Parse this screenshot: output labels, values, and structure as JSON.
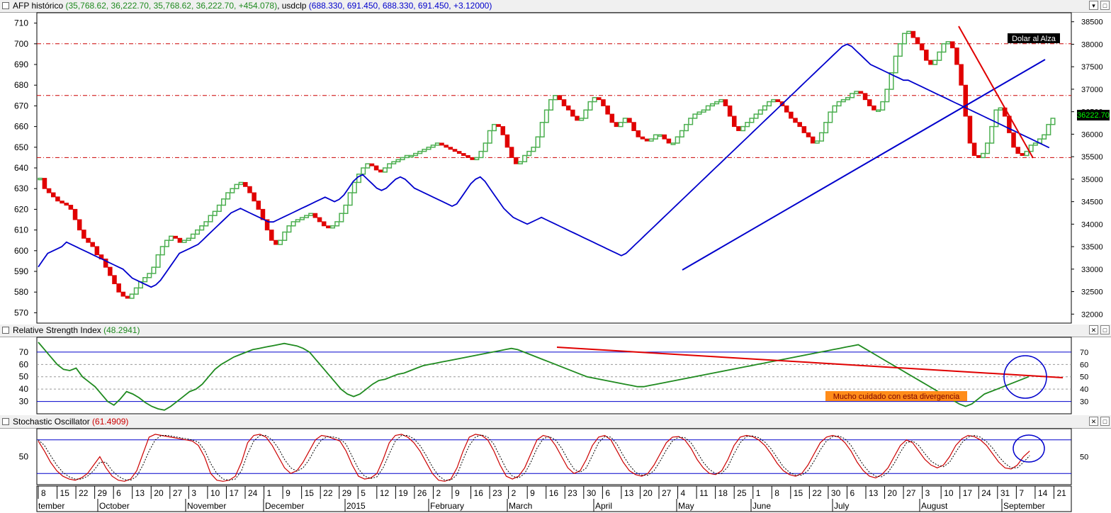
{
  "panels": {
    "price": {
      "prefix": "AFP histórico",
      "afp_values": "(35,768.62, 36,222.70, 35,768.62, 36,222.70, +454.078)",
      "usd_name": "usdclp",
      "usd_values": "(688.330, 691.450, 688.330, 691.450, +3.12000)",
      "annotation": "Dolar al Alza",
      "last_price_label": "36222.70",
      "left_ticks": [
        "710",
        "700",
        "690",
        "680",
        "670",
        "660",
        "650",
        "640",
        "630",
        "620",
        "610",
        "600",
        "590",
        "580",
        "570"
      ],
      "right_ticks": [
        "38500",
        "38000",
        "37500",
        "37000",
        "36500",
        "36000",
        "35500",
        "35000",
        "34500",
        "34000",
        "33500",
        "33000",
        "32500",
        "32000"
      ]
    },
    "rsi": {
      "title": "Relative Strength Index",
      "value": "(48.2941)",
      "annotation": "Mucho cuidado con esta divergencia",
      "ticks": [
        "70",
        "60",
        "50",
        "40",
        "30"
      ]
    },
    "stoch": {
      "title": "Stochastic Oscillator",
      "value": "(61.4909)",
      "ticks": [
        "50"
      ]
    }
  },
  "xaxis": {
    "day_ticks": [
      "8",
      "15",
      "22",
      "29",
      "6",
      "13",
      "20",
      "27",
      "3",
      "10",
      "17",
      "24",
      "1",
      "9",
      "15",
      "22",
      "29",
      "5",
      "12",
      "19",
      "26",
      "2",
      "9",
      "16",
      "23",
      "2",
      "9",
      "16",
      "23",
      "30",
      "6",
      "13",
      "20",
      "27",
      "4",
      "11",
      "18",
      "25",
      "1",
      "8",
      "15",
      "22",
      "30",
      "6",
      "13",
      "20",
      "27",
      "3",
      "10",
      "17",
      "24",
      "31",
      "7",
      "14",
      "21"
    ],
    "month_labels": [
      "tember",
      "October",
      "November",
      "December",
      "2015",
      "February",
      "March",
      "April",
      "May",
      "June",
      "July",
      "August",
      "September"
    ]
  },
  "colors": {
    "up_candle": "#4caf50",
    "down_candle": "#e00000",
    "usd_line": "#0000cc",
    "rsi_line": "#1f8a1f",
    "trend_red": "#e00000",
    "trend_blue": "#0000cc",
    "stoch_k": "#cc0000",
    "stoch_d": "#000000"
  },
  "chart_data": [
    {
      "type": "candlestick+line",
      "series": [
        {
          "name": "AFP histórico",
          "axis": "left",
          "values": [
            635,
            630,
            628,
            626,
            624,
            623,
            622,
            620,
            615,
            610,
            606,
            604,
            602,
            598,
            596,
            592,
            588,
            584,
            580,
            578,
            577,
            579,
            582,
            585,
            587,
            589,
            592,
            598,
            602,
            605,
            607,
            606,
            604,
            605,
            606,
            608,
            610,
            612,
            614,
            617,
            619,
            622,
            625,
            628,
            630,
            632,
            633,
            631,
            628,
            624,
            620,
            615,
            610,
            605,
            603,
            605,
            609,
            612,
            614,
            615,
            616,
            617,
            618,
            616,
            614,
            612,
            611,
            612,
            614,
            618,
            622,
            628,
            633,
            637,
            640,
            642,
            641,
            639,
            638,
            640,
            642,
            643,
            644,
            645,
            646,
            646,
            647,
            648,
            649,
            650,
            651,
            652,
            651,
            650,
            649,
            648,
            647,
            646,
            645,
            644,
            645,
            648,
            652,
            658,
            661,
            660,
            656,
            650,
            645,
            642,
            643,
            646,
            648,
            650,
            655,
            662,
            668,
            673,
            675,
            673,
            670,
            668,
            665,
            663,
            664,
            668,
            672,
            674,
            673,
            670,
            666,
            662,
            660,
            662,
            664,
            662,
            658,
            655,
            654,
            653,
            654,
            656,
            656,
            654,
            652,
            652,
            655,
            658,
            661,
            664,
            666,
            667,
            668,
            670,
            671,
            672,
            673,
            670,
            665,
            660,
            658,
            660,
            662,
            664,
            666,
            668,
            670,
            672,
            673,
            672,
            670,
            667,
            664,
            662,
            660,
            657,
            655,
            652,
            653,
            657,
            662,
            667,
            670,
            672,
            673,
            674,
            676,
            677,
            676,
            673,
            670,
            668,
            668,
            672,
            678,
            686,
            694,
            700,
            705,
            706,
            703,
            700,
            697,
            692,
            690,
            692,
            696,
            700,
            701,
            698,
            690,
            680,
            665,
            652,
            646,
            645,
            647,
            652,
            660,
            668,
            669,
            665,
            657,
            650,
            647,
            646,
            648,
            651,
            652,
            654,
            656,
            661,
            664
          ]
        },
        {
          "name": "usdclp",
          "axis": "right",
          "values": [
            33050,
            33200,
            33350,
            33400,
            33450,
            33500,
            33600,
            33550,
            33500,
            33450,
            33400,
            33350,
            33300,
            33250,
            33200,
            33150,
            33100,
            33050,
            33000,
            32900,
            32800,
            32750,
            32700,
            32650,
            32600,
            32650,
            32750,
            32900,
            33050,
            33200,
            33350,
            33400,
            33450,
            33500,
            33550,
            33650,
            33750,
            33850,
            33950,
            34050,
            34150,
            34250,
            34300,
            34350,
            34300,
            34250,
            34200,
            34150,
            34100,
            34050,
            34050,
            34100,
            34150,
            34200,
            34250,
            34300,
            34350,
            34400,
            34450,
            34500,
            34550,
            34600,
            34550,
            34500,
            34550,
            34650,
            34800,
            34950,
            35050,
            35100,
            35000,
            34900,
            34800,
            34750,
            34800,
            34900,
            35000,
            35050,
            35000,
            34900,
            34800,
            34750,
            34700,
            34650,
            34600,
            34550,
            34500,
            34450,
            34400,
            34450,
            34600,
            34750,
            34900,
            35000,
            35050,
            34950,
            34800,
            34650,
            34500,
            34350,
            34250,
            34150,
            34100,
            34050,
            34000,
            34050,
            34100,
            34150,
            34100,
            34050,
            34000,
            33950,
            33900,
            33850,
            33800,
            33750,
            33700,
            33650,
            33600,
            33550,
            33500,
            33450,
            33400,
            33350,
            33300,
            33350,
            33450,
            33550,
            33650,
            33750,
            33850,
            33950,
            34050,
            34150,
            34250,
            34350,
            34450,
            34550,
            34650,
            34750,
            34850,
            34950,
            35050,
            35150,
            35250,
            35350,
            35450,
            35550,
            35650,
            35750,
            35850,
            35950,
            36050,
            36150,
            36250,
            36350,
            36450,
            36550,
            36650,
            36750,
            36850,
            36950,
            37050,
            37150,
            37250,
            37350,
            37450,
            37550,
            37650,
            37750,
            37850,
            37950,
            38000,
            37950,
            37850,
            37750,
            37650,
            37550,
            37500,
            37450,
            37400,
            37350,
            37300,
            37250,
            37200,
            37200,
            37150,
            37100,
            37050,
            37000,
            36950,
            36900,
            36850,
            36800,
            36750,
            36700,
            36650,
            36600,
            36550,
            36500,
            36450,
            36400,
            36350,
            36300,
            36250,
            36200,
            36150,
            36100,
            36050,
            36000,
            35950,
            35900,
            35850,
            35800,
            35750,
            35700
          ]
        }
      ],
      "ylim_left": [
        565,
        715
      ],
      "ylim_right": [
        31800,
        38700
      ]
    },
    {
      "type": "line",
      "title": "Relative Strength Index",
      "series": [
        {
          "name": "RSI",
          "values": [
            78,
            72,
            66,
            60,
            56,
            55,
            57,
            50,
            46,
            42,
            36,
            30,
            27,
            32,
            38,
            36,
            33,
            29,
            26,
            24,
            23,
            26,
            30,
            34,
            38,
            40,
            44,
            50,
            56,
            60,
            63,
            66,
            68,
            70,
            72,
            73,
            74,
            75,
            76,
            77,
            76,
            75,
            73,
            70,
            64,
            58,
            52,
            46,
            40,
            36,
            34,
            36,
            40,
            44,
            47,
            48,
            50,
            52,
            53,
            55,
            57,
            59,
            60,
            61,
            62,
            63,
            64,
            65,
            66,
            67,
            68,
            69,
            70,
            71,
            72,
            73,
            72,
            70,
            68,
            66,
            64,
            62,
            60,
            58,
            56,
            54,
            52,
            50,
            49,
            48,
            47,
            46,
            45,
            44,
            43,
            42,
            42,
            43,
            44,
            45,
            46,
            47,
            48,
            49,
            50,
            51,
            52,
            53,
            54,
            55,
            56,
            57,
            58,
            59,
            60,
            61,
            62,
            63,
            64,
            65,
            66,
            67,
            68,
            69,
            70,
            71,
            72,
            73,
            74,
            75,
            76,
            73,
            70,
            67,
            64,
            61,
            58,
            55,
            52,
            49,
            46,
            43,
            40,
            37,
            34,
            31,
            28,
            26,
            28,
            32,
            36,
            38,
            40,
            42,
            44,
            46,
            48,
            50
          ]
        }
      ],
      "resistance_lines": [
        70,
        30
      ],
      "ylim": [
        20,
        82
      ]
    },
    {
      "type": "line",
      "title": "Stochastic Oscillator",
      "series": [
        {
          "name": "%K",
          "values": [
            78,
            60,
            40,
            25,
            15,
            10,
            8,
            12,
            20,
            35,
            50,
            30,
            15,
            8,
            6,
            10,
            25,
            55,
            85,
            90,
            88,
            86,
            84,
            82,
            80,
            78,
            70,
            50,
            20,
            8,
            6,
            8,
            15,
            40,
            75,
            88,
            90,
            85,
            70,
            50,
            30,
            20,
            25,
            40,
            60,
            80,
            88,
            86,
            82,
            78,
            60,
            35,
            15,
            10,
            12,
            20,
            45,
            75,
            88,
            90,
            85,
            75,
            60,
            40,
            20,
            8,
            6,
            10,
            30,
            60,
            85,
            90,
            88,
            80,
            60,
            35,
            15,
            10,
            15,
            30,
            55,
            80,
            88,
            85,
            70,
            50,
            30,
            20,
            25,
            45,
            70,
            85,
            88,
            80,
            60,
            40,
            25,
            18,
            15,
            20,
            35,
            55,
            75,
            85,
            86,
            80,
            65,
            45,
            30,
            20,
            18,
            25,
            45,
            70,
            85,
            88,
            86,
            80,
            70,
            55,
            38,
            25,
            18,
            15,
            20,
            35,
            55,
            75,
            85,
            88,
            85,
            75,
            60,
            40,
            25,
            15,
            12,
            18,
            30,
            50,
            70,
            80,
            75,
            60,
            45,
            35,
            30,
            35,
            50,
            70,
            82,
            88,
            86,
            80,
            70,
            55,
            40,
            30,
            28,
            35,
            50,
            60
          ]
        },
        {
          "name": "%D",
          "values": [
            80,
            70,
            52,
            35,
            22,
            14,
            10,
            10,
            15,
            25,
            40,
            40,
            25,
            15,
            9,
            8,
            15,
            35,
            60,
            80,
            88,
            88,
            86,
            84,
            82,
            80,
            76,
            62,
            38,
            20,
            10,
            8,
            10,
            25,
            55,
            78,
            88,
            88,
            80,
            65,
            45,
            30,
            24,
            30,
            45,
            65,
            80,
            86,
            85,
            82,
            72,
            50,
            28,
            15,
            11,
            14,
            30,
            55,
            78,
            88,
            88,
            82,
            70,
            52,
            32,
            16,
            8,
            8,
            18,
            45,
            70,
            85,
            89,
            85,
            72,
            50,
            28,
            15,
            12,
            20,
            40,
            65,
            82,
            86,
            80,
            65,
            45,
            28,
            22,
            30,
            52,
            75,
            86,
            85,
            72,
            52,
            35,
            22,
            17,
            17,
            25,
            42,
            62,
            78,
            85,
            84,
            75,
            58,
            40,
            27,
            20,
            20,
            32,
            55,
            75,
            86,
            87,
            84,
            76,
            64,
            48,
            32,
            22,
            17,
            17,
            25,
            42,
            62,
            78,
            86,
            87,
            82,
            70,
            52,
            35,
            22,
            15,
            14,
            22,
            38,
            58,
            75,
            78,
            70,
            55,
            42,
            35,
            32,
            40,
            58,
            75,
            85,
            88,
            85,
            77,
            65,
            50,
            38,
            30,
            30,
            40,
            52
          ]
        }
      ],
      "levels": [
        80,
        20
      ],
      "ylim": [
        0,
        100
      ]
    }
  ]
}
